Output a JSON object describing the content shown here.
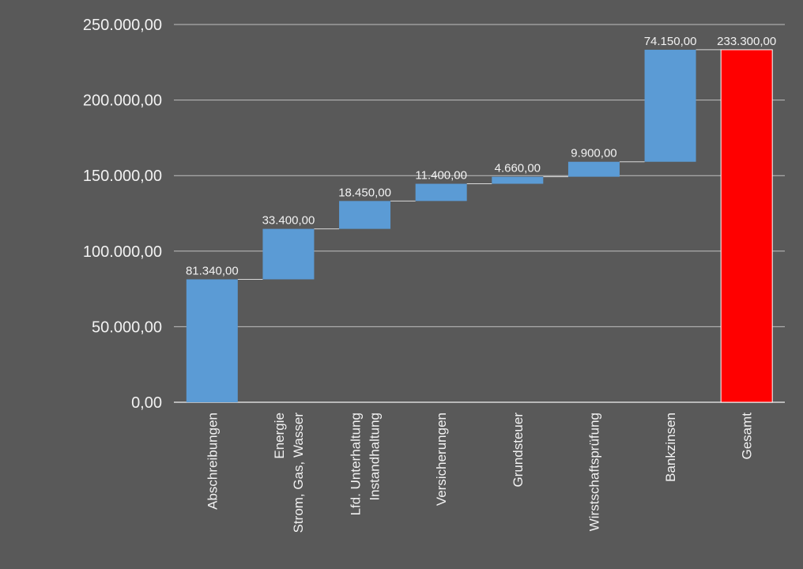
{
  "chart_data": {
    "type": "bar",
    "subtype": "waterfall",
    "title": "",
    "xlabel": "",
    "ylabel": "",
    "ylim": [
      0,
      250000
    ],
    "yticks": [
      0,
      50000,
      100000,
      150000,
      200000,
      250000
    ],
    "ytick_labels": [
      "0,00",
      "50.000,00",
      "100.000,00",
      "150.000,00",
      "200.000,00",
      "250.000,00"
    ],
    "grid": true,
    "legend": "none",
    "categories": [
      "Abschreibungen",
      "Energie\nStrom, Gas, Wasser",
      "Lfd. Unterhaltung\nInstandhaltung",
      "Versicherungen",
      "Grundsteuer",
      "Wirstschaftsprüfung",
      "Bankzinsen",
      "Gesamt"
    ],
    "values": [
      81340,
      33400,
      18450,
      11400,
      4660,
      9900,
      74150,
      233300
    ],
    "value_labels": [
      "81.340,00",
      "33.400,00",
      "18.450,00",
      "11.400,00",
      "4.660,00",
      "9.900,00",
      "74.150,00",
      "233.300,00"
    ],
    "total_index": 7,
    "colors": {
      "background": "#595959",
      "bar": "#5b9bd5",
      "total_bar": "#ff0000",
      "gridline": "#bfbfbf",
      "text": "#f2f2f2"
    }
  }
}
